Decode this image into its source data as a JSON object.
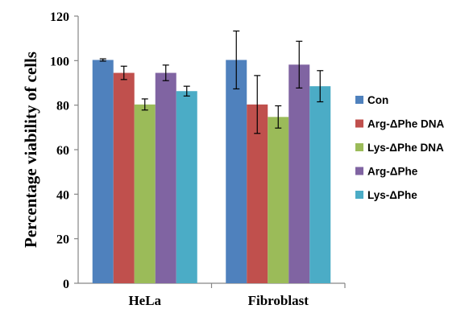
{
  "chart_data": {
    "type": "bar",
    "ylabel": "Percentage viability of cells",
    "xlabel": "",
    "ylim": [
      0,
      120
    ],
    "yticks": [
      0,
      20,
      40,
      60,
      80,
      100,
      120
    ],
    "grid": false,
    "legend_position": "right",
    "categories": [
      "HeLa",
      "Fibroblast"
    ],
    "series": [
      {
        "name": "Con",
        "color": "#4F81BD",
        "values": [
          100.3,
          100.3
        ],
        "errors": [
          0.5,
          13
        ]
      },
      {
        "name": "Arg-ΔPhe DNA",
        "color": "#C0504D",
        "values": [
          94.5,
          80.3
        ],
        "errors": [
          3,
          13
        ]
      },
      {
        "name": "Lys-ΔPhe DNA",
        "color": "#9BBB59",
        "values": [
          80.3,
          74.7
        ],
        "errors": [
          2.5,
          5
        ]
      },
      {
        "name": "Arg-ΔPhe",
        "color": "#8064A2",
        "values": [
          94.5,
          98.2
        ],
        "errors": [
          3.5,
          10.5
        ]
      },
      {
        "name": "Lys-ΔPhe",
        "color": "#4BACC6",
        "values": [
          86.3,
          88.5
        ],
        "errors": [
          2.2,
          7
        ]
      }
    ]
  }
}
